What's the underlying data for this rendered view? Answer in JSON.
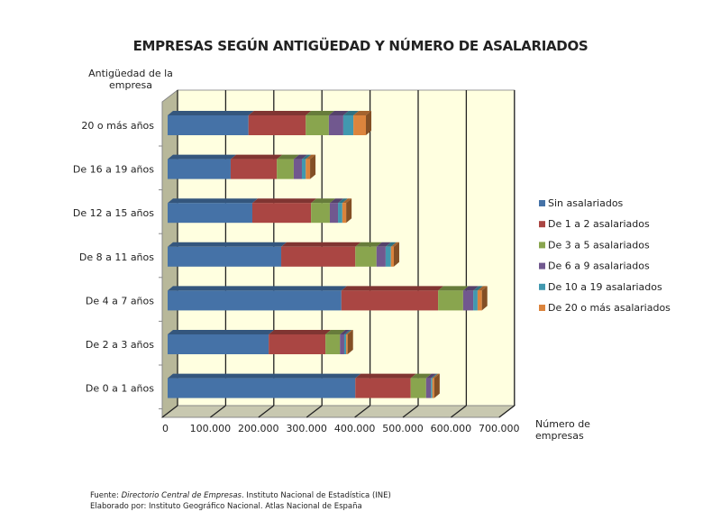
{
  "chart_data": {
    "type": "bar",
    "orientation": "horizontal",
    "stacked": true,
    "title": "EMPRESAS SEGÚN ANTIGÜEDAD Y NÚMERO DE ASALARIADOS",
    "ylabel": "Antigüedad de la empresa",
    "xlabel": "Número de empresas",
    "xlim": [
      0,
      700000
    ],
    "x_ticks": [
      "0",
      "100.000",
      "200.000",
      "300.000",
      "400.000",
      "500.000",
      "600.000",
      "700.000"
    ],
    "categories": [
      "20 o más años",
      "De 16 a 19 años",
      "De 12 a 15 años",
      "De 8 a 11 años",
      "De 4 a 7 años",
      "De 2 a 3 años",
      "De 0 a 1 años"
    ],
    "series": [
      {
        "name": "Sin asalariados",
        "color": "#4572A7",
        "values": [
          168000,
          131000,
          176000,
          236000,
          361000,
          210000,
          390000
        ]
      },
      {
        "name": "De 1 a 2 asalariados",
        "color": "#AA4643",
        "values": [
          119000,
          96000,
          122000,
          154000,
          201000,
          118000,
          115000
        ]
      },
      {
        "name": "De 3 a 5 asalariados",
        "color": "#89A54E",
        "values": [
          48000,
          35000,
          39000,
          44000,
          52000,
          30000,
          32000
        ]
      },
      {
        "name": "De 6 a 9 asalariados",
        "color": "#71588F",
        "values": [
          30000,
          17000,
          17000,
          19000,
          21000,
          9000,
          10000
        ]
      },
      {
        "name": "De 10 a 19 asalariados",
        "color": "#4198AF",
        "values": [
          21000,
          8000,
          9000,
          11000,
          9000,
          4000,
          3000
        ]
      },
      {
        "name": "De 20 o más asalariados",
        "color": "#DB843D",
        "values": [
          26000,
          9000,
          8000,
          6000,
          9000,
          3000,
          4000
        ]
      }
    ],
    "grid": true,
    "legend": "right",
    "background_color": "#FFFFE0"
  },
  "footer": {
    "source_prefix": "Fuente: ",
    "source_italic": "Directorio Central de Empresas",
    "source_suffix": ". Instituto Nacional de Estadística (INE)",
    "elaborated": "Elaborado por: Instituto Geográfico Nacional. Atlas Nacional de España"
  }
}
